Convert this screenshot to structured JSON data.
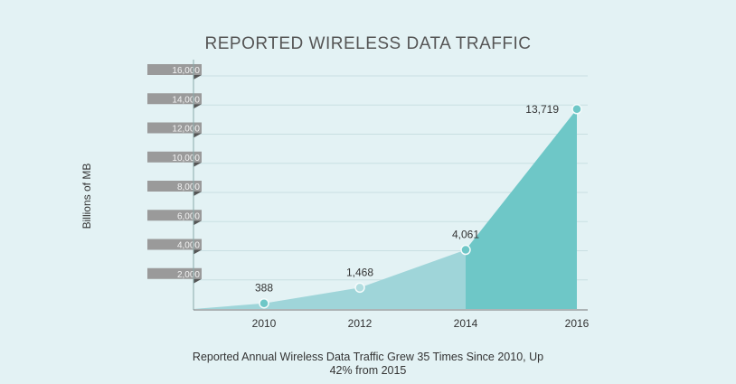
{
  "chart_data": {
    "type": "area",
    "title": "REPORTED WIRELESS DATA TRAFFIC",
    "ylabel": "Billions of MB",
    "xlabel": "",
    "categories": [
      "2010",
      "2012",
      "2014",
      "2016"
    ],
    "values": [
      388,
      1468,
      4061,
      13719
    ],
    "value_labels": [
      "388",
      "1,468",
      "4,061",
      "13,719"
    ],
    "ylim": [
      0,
      16000
    ],
    "yticks": [
      2000,
      4000,
      6000,
      8000,
      10000,
      12000,
      14000,
      16000
    ],
    "ytick_labels": [
      "2,000",
      "4,000",
      "6,000",
      "8,000",
      "10,000",
      "12,000",
      "14,000",
      "16,000"
    ],
    "grid": true,
    "caption_lines": [
      "Reported Annual Wireless Data Traffic Grew 35 Times Since 2010, Up",
      "42% from 2015"
    ],
    "colors": {
      "light_fill": "#9fd5d9",
      "dark_fill": "#6ec7c7",
      "tick_tag": "#9a9a9a",
      "grid": "#c9dfe2"
    }
  }
}
